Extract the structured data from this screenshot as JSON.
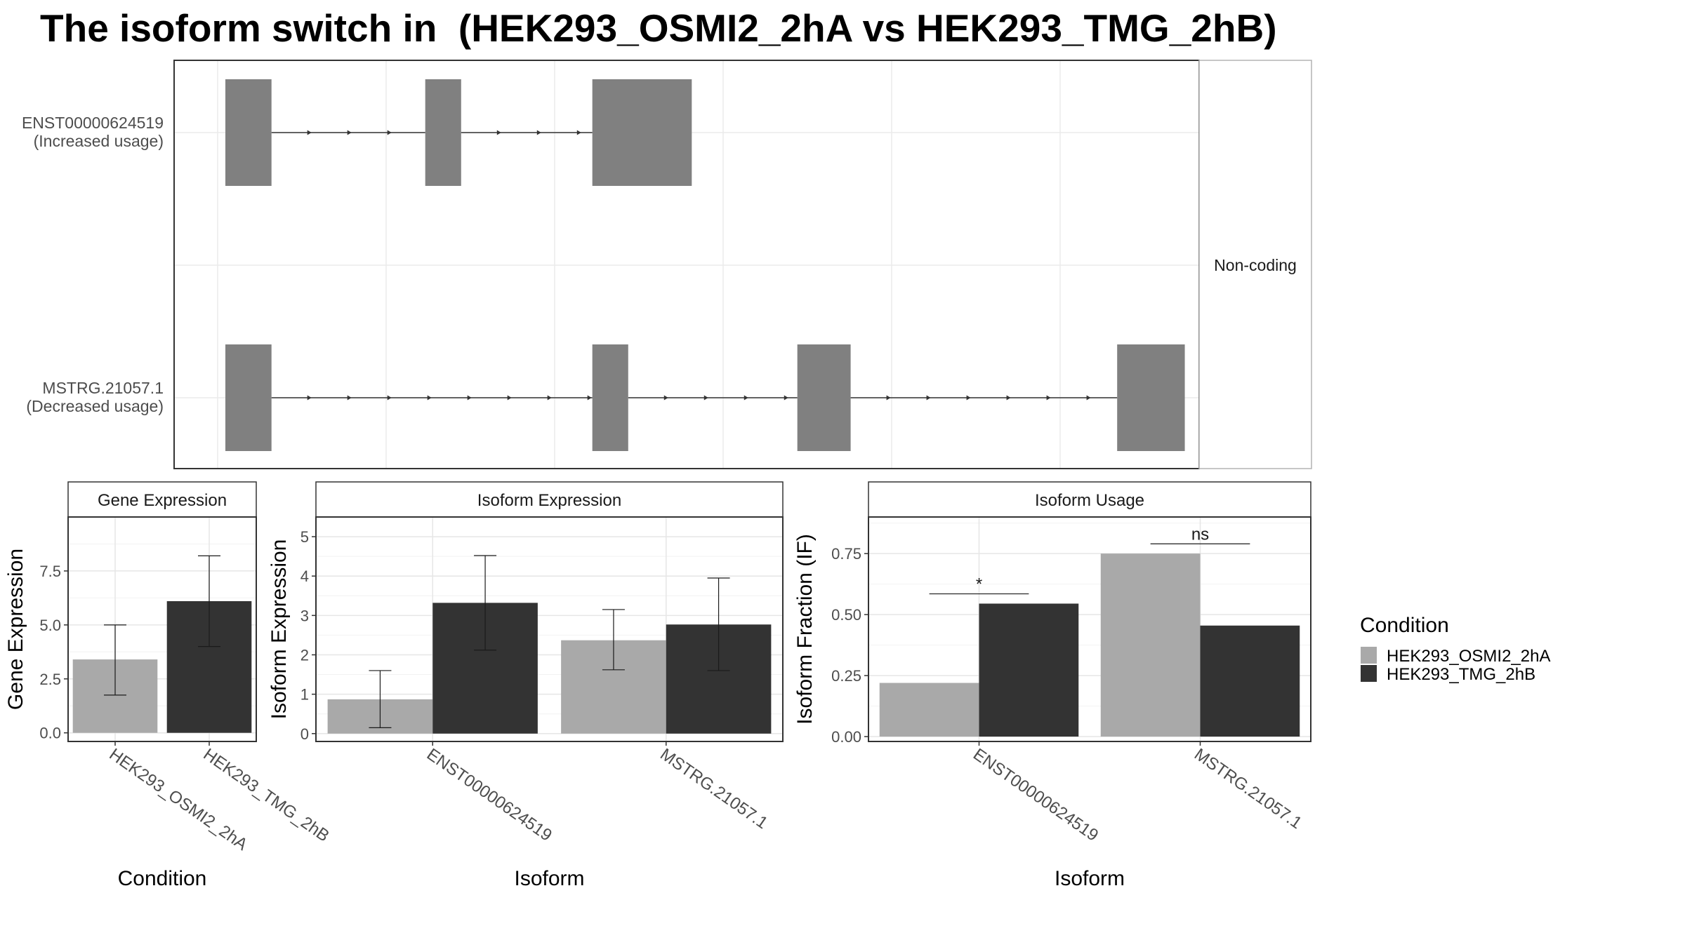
{
  "title": "The isoform switch in  (HEK293_OSMI2_2hA vs HEK293_TMG_2hB)",
  "colors": {
    "cond_a": "#a9a9a9",
    "cond_b": "#333333",
    "exon": "#808080",
    "line": "#333333"
  },
  "chart_data": [
    {
      "type": "gene-structure",
      "strip_label": "Non-coding",
      "isoforms": [
        {
          "label": "ENST00000624519",
          "sublabel": "(Increased usage)",
          "exons": [
            [
              0.05,
              0.095
            ],
            [
              0.245,
              0.28
            ],
            [
              0.408,
              0.505
            ]
          ]
        },
        {
          "label": "MSTRG.21057.1",
          "sublabel": "(Decreased usage)",
          "exons": [
            [
              0.05,
              0.095
            ],
            [
              0.408,
              0.443
            ],
            [
              0.608,
              0.66
            ],
            [
              0.92,
              0.986
            ]
          ]
        }
      ]
    },
    {
      "type": "bar",
      "title": "Gene Expression",
      "xlabel": "Condition",
      "ylabel": "Gene Expression",
      "ylim": [
        -0.4,
        10
      ],
      "yticks": [
        "0.0",
        "2.5",
        "5.0",
        "7.5"
      ],
      "categories": [
        "HEK293_OSMI2_2hA",
        "HEK293_TMG_2hB"
      ],
      "values": [
        3.4,
        6.1
      ],
      "errors": [
        [
          1.75,
          5.0
        ],
        [
          4.0,
          8.2
        ]
      ]
    },
    {
      "type": "bar",
      "title": "Isoform Expression",
      "xlabel": "Isoform",
      "ylabel": "Isoform Expression",
      "ylim": [
        -0.2,
        5.5
      ],
      "yticks": [
        "0",
        "1",
        "2",
        "3",
        "4",
        "5"
      ],
      "categories": [
        "ENST00000624519",
        "MSTRG.21057.1"
      ],
      "series": [
        {
          "name": "HEK293_OSMI2_2hA",
          "values": [
            0.87,
            2.37
          ],
          "errors": [
            [
              0.15,
              1.6
            ],
            [
              1.62,
              3.15
            ]
          ]
        },
        {
          "name": "HEK293_TMG_2hB",
          "values": [
            3.32,
            2.77
          ],
          "errors": [
            [
              2.12,
              4.52
            ],
            [
              1.6,
              3.95
            ]
          ]
        }
      ]
    },
    {
      "type": "bar",
      "title": "Isoform Usage",
      "xlabel": "Isoform",
      "ylabel": "Isoform Fraction (IF)",
      "ylim": [
        -0.02,
        0.9
      ],
      "yticks": [
        "0.00",
        "0.25",
        "0.50",
        "0.75"
      ],
      "categories": [
        "ENST00000624519",
        "MSTRG.21057.1"
      ],
      "series": [
        {
          "name": "HEK293_OSMI2_2hA",
          "values": [
            0.22,
            0.75
          ]
        },
        {
          "name": "HEK293_TMG_2hB",
          "values": [
            0.545,
            0.455
          ]
        }
      ],
      "significance": [
        {
          "category_index": 0,
          "label": "*",
          "y": 0.585
        },
        {
          "category_index": 1,
          "label": "ns",
          "y": 0.79
        }
      ]
    }
  ],
  "legend": {
    "title": "Condition",
    "items": [
      "HEK293_OSMI2_2hA",
      "HEK293_TMG_2hB"
    ]
  }
}
